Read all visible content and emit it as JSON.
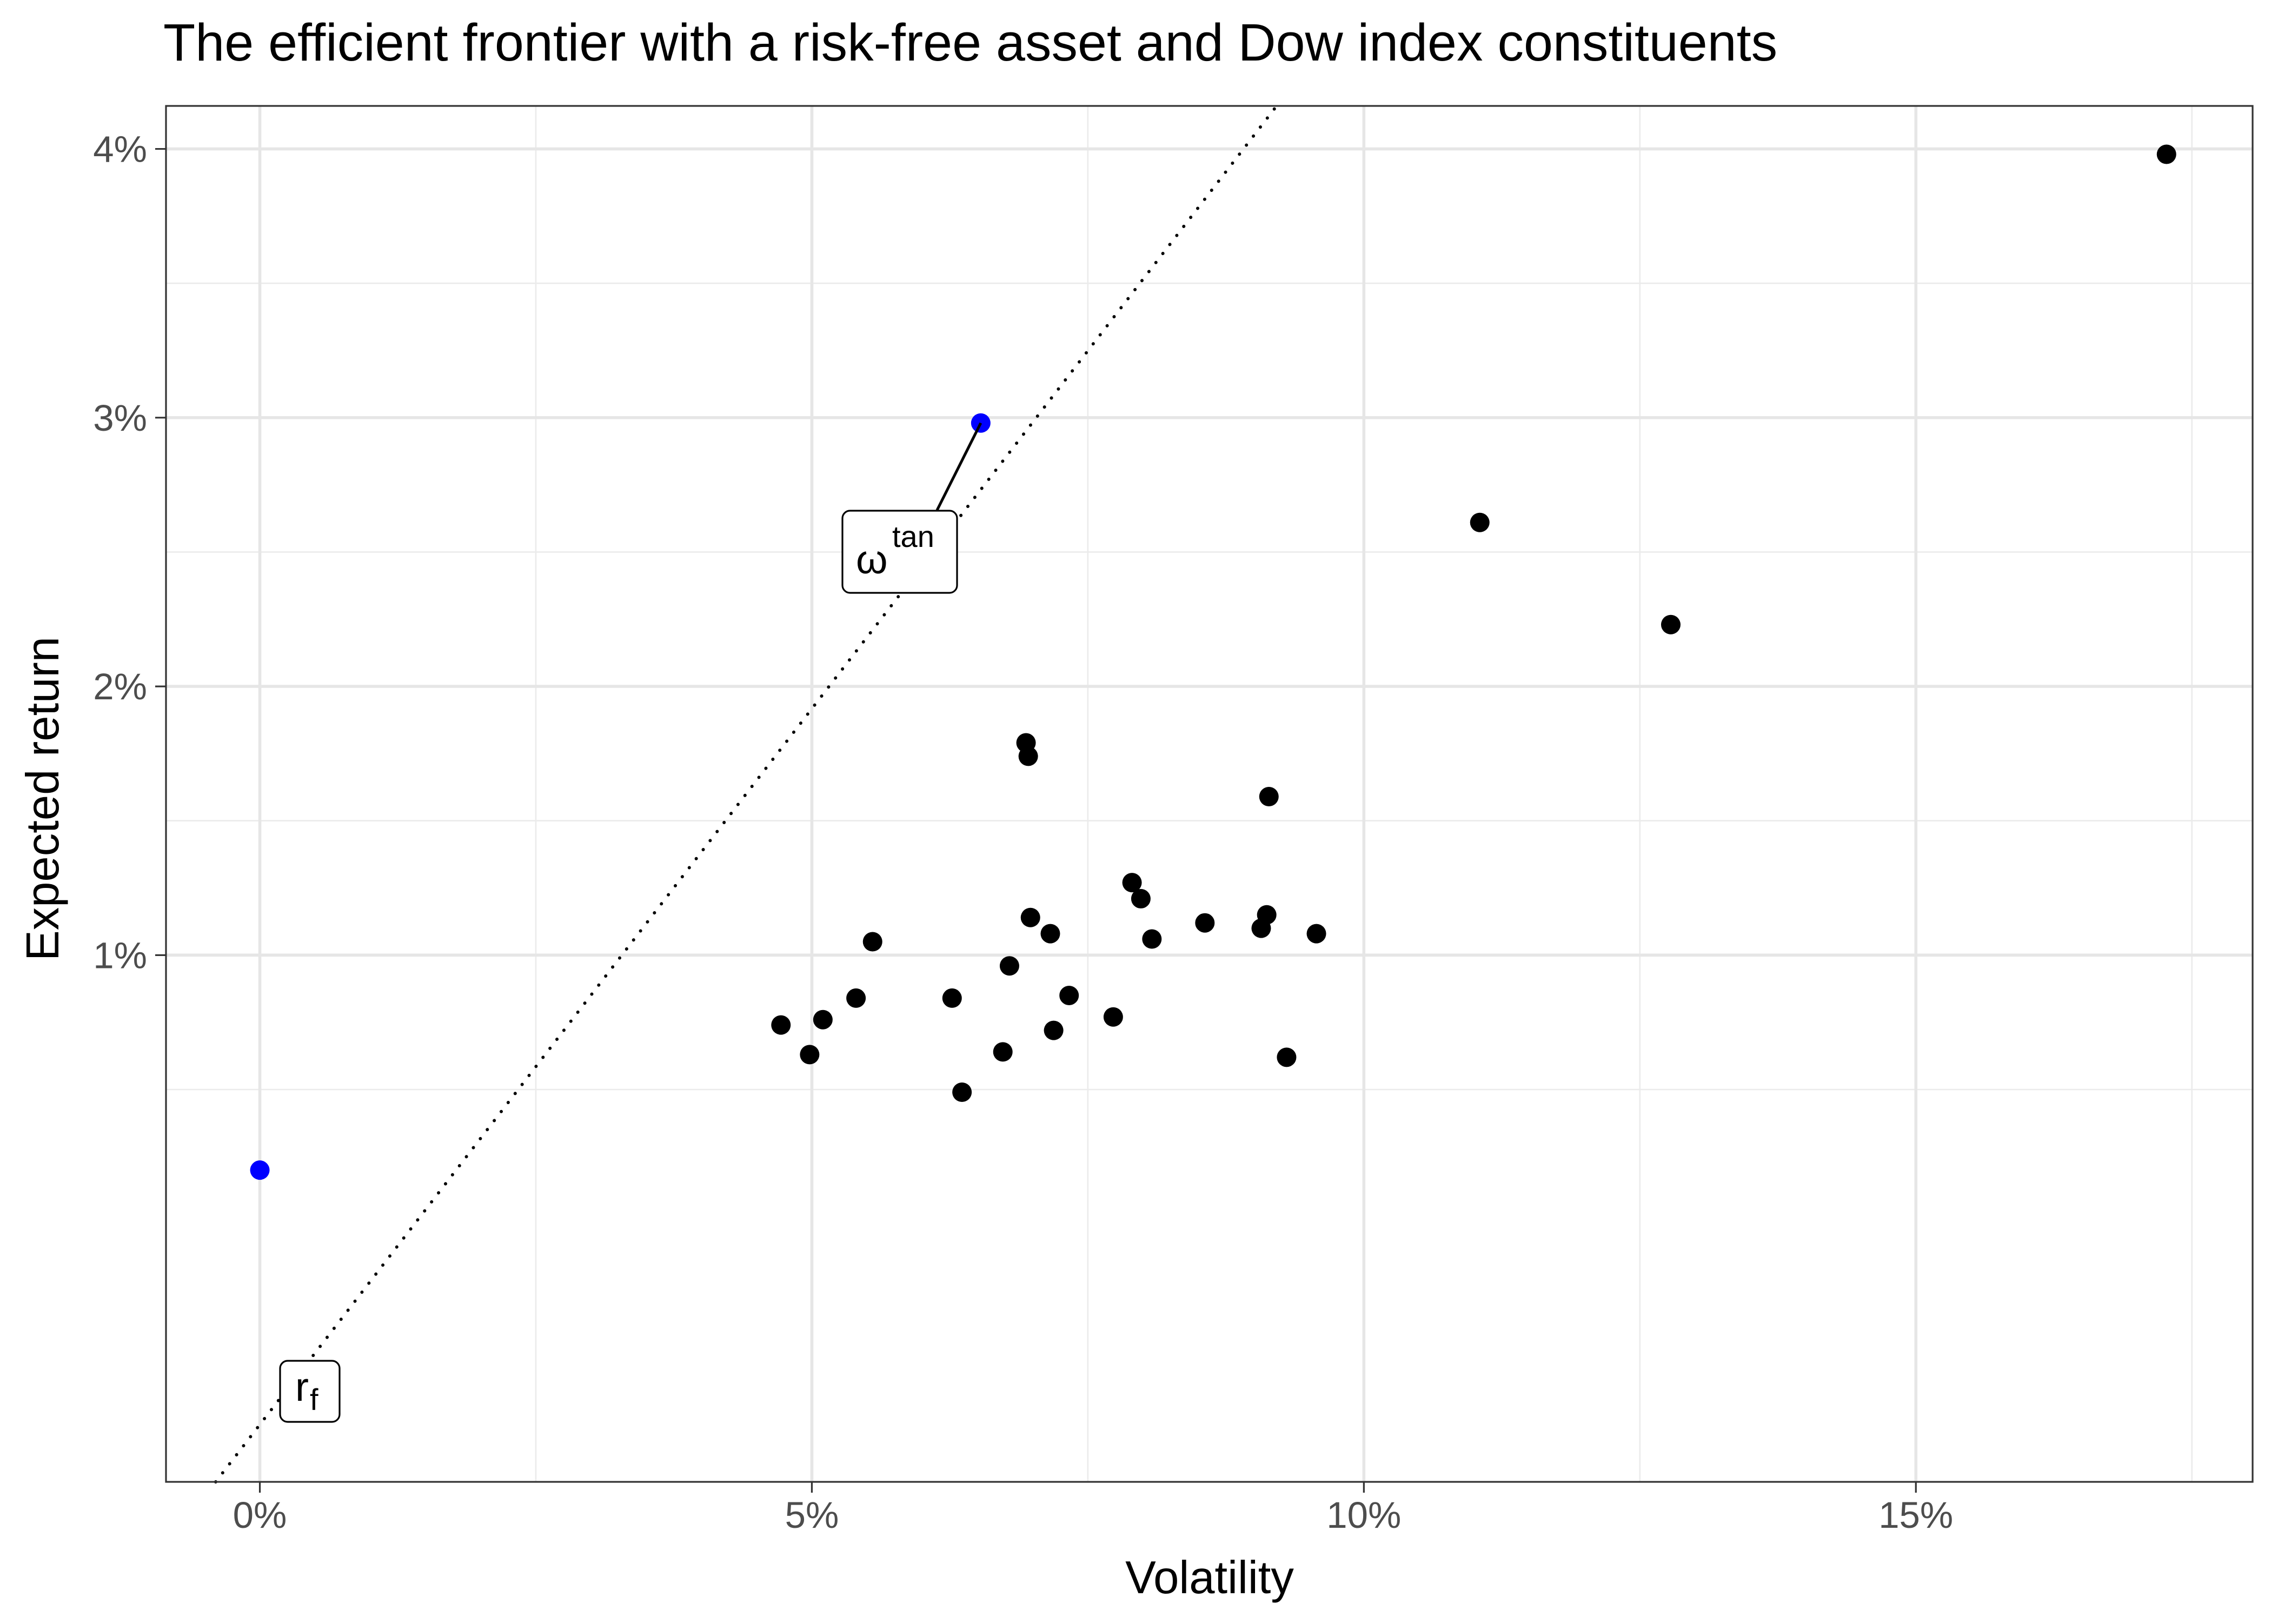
{
  "chart_data": {
    "type": "scatter",
    "title": "The efficient frontier with a risk-free asset and Dow index constituents",
    "xlabel": "Volatility",
    "ylabel": "Expected return",
    "xlim": [
      -0.0085,
      0.1805
    ],
    "ylim": [
      -0.0096,
      0.0416
    ],
    "x_ticks": [
      0.0,
      0.05,
      0.1,
      0.15
    ],
    "x_tick_labels": [
      "0%",
      "5%",
      "10%",
      "15%"
    ],
    "x_minor_ticks": [
      0.025,
      0.075,
      0.125,
      0.175
    ],
    "y_ticks": [
      0.01,
      0.02,
      0.03,
      0.04
    ],
    "y_tick_labels": [
      "1%",
      "2%",
      "3%",
      "4%"
    ],
    "y_minor_ticks": [
      0.005,
      0.015,
      0.025,
      0.035
    ],
    "grid": true,
    "theme": "black-white with light grey gridlines",
    "series": [
      {
        "type": "scatter",
        "color": "#000000",
        "points": [
          {
            "x": 0.1727,
            "y": 0.0398
          },
          {
            "x": 0.1105,
            "y": 0.0261
          },
          {
            "x": 0.1278,
            "y": 0.0223
          },
          {
            "x": 0.0694,
            "y": 0.0179
          },
          {
            "x": 0.0696,
            "y": 0.0174
          },
          {
            "x": 0.0914,
            "y": 0.0159
          },
          {
            "x": 0.079,
            "y": 0.0127
          },
          {
            "x": 0.0798,
            "y": 0.0121
          },
          {
            "x": 0.0698,
            "y": 0.0114
          },
          {
            "x": 0.0912,
            "y": 0.0115
          },
          {
            "x": 0.0856,
            "y": 0.0112
          },
          {
            "x": 0.0907,
            "y": 0.011
          },
          {
            "x": 0.0716,
            "y": 0.0108
          },
          {
            "x": 0.0957,
            "y": 0.0108
          },
          {
            "x": 0.0808,
            "y": 0.0106
          },
          {
            "x": 0.0555,
            "y": 0.0105
          },
          {
            "x": 0.0679,
            "y": 0.0096
          },
          {
            "x": 0.0733,
            "y": 0.0085
          },
          {
            "x": 0.054,
            "y": 0.0084
          },
          {
            "x": 0.0627,
            "y": 0.0084
          },
          {
            "x": 0.0773,
            "y": 0.0077
          },
          {
            "x": 0.051,
            "y": 0.0076
          },
          {
            "x": 0.0472,
            "y": 0.0074
          },
          {
            "x": 0.0719,
            "y": 0.0072
          },
          {
            "x": 0.0673,
            "y": 0.0064
          },
          {
            "x": 0.0498,
            "y": 0.0063
          },
          {
            "x": 0.093,
            "y": 0.0062
          },
          {
            "x": 0.0636,
            "y": 0.0049
          }
        ]
      },
      {
        "type": "scatter",
        "color": "#0000ff",
        "points": [
          {
            "x": 0.0,
            "y": 0.002,
            "label_base": "r",
            "label_sub": "f"
          },
          {
            "x": 0.0653,
            "y": 0.0298,
            "label_base": "ω",
            "label_sup": "tan"
          }
        ]
      },
      {
        "type": "line",
        "style": "dotted",
        "color": "#000000",
        "points": [
          {
            "x": -0.004,
            "y": -0.0096
          },
          {
            "x": 0.0921,
            "y": 0.0416
          }
        ]
      }
    ]
  }
}
